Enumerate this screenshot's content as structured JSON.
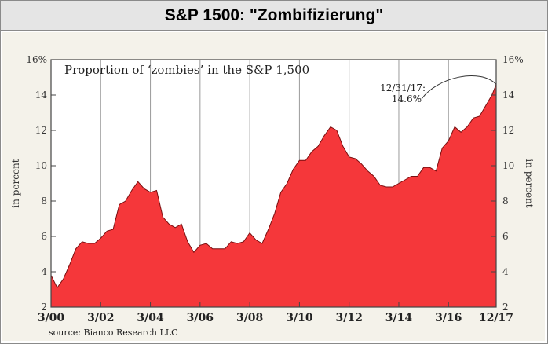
{
  "header": {
    "title": "S&P 1500: \"Zombifizierung\""
  },
  "chart_data": {
    "type": "area",
    "title": "Proportion of ‘zombies’ in the S&P 1,500",
    "ylabel_left": "in percent",
    "ylabel_right": "in percent",
    "ylim": [
      2,
      16
    ],
    "yticks": [
      2,
      4,
      6,
      8,
      10,
      12,
      14,
      16
    ],
    "ytick_labels": [
      "2",
      "4",
      "6",
      "8",
      "10",
      "12",
      "14",
      "16%"
    ],
    "xlim": [
      2000.0,
      2017.92
    ],
    "xticks": [
      2000,
      2002,
      2004,
      2006,
      2008,
      2010,
      2012,
      2014,
      2016,
      2017.92
    ],
    "xtick_labels": [
      "3/00",
      "3/02",
      "3/04",
      "3/06",
      "3/08",
      "3/10",
      "3/12",
      "3/14",
      "3/16",
      "12/17"
    ],
    "grid": "vertical",
    "fill_color": "#f5373a",
    "annotation": {
      "line1": "12/31/17:",
      "line2": "14.6%",
      "x": 2017.92,
      "y": 14.6
    },
    "source": "source: Bianco Research LLC",
    "series": [
      {
        "name": "Proportion of zombies",
        "x": [
          2000.0,
          2000.25,
          2000.5,
          2000.75,
          2001.0,
          2001.25,
          2001.5,
          2001.75,
          2002.0,
          2002.25,
          2002.5,
          2002.75,
          2003.0,
          2003.25,
          2003.5,
          2003.75,
          2004.0,
          2004.25,
          2004.5,
          2004.75,
          2005.0,
          2005.25,
          2005.5,
          2005.75,
          2006.0,
          2006.25,
          2006.5,
          2006.75,
          2007.0,
          2007.25,
          2007.5,
          2007.75,
          2008.0,
          2008.25,
          2008.5,
          2008.75,
          2009.0,
          2009.25,
          2009.5,
          2009.75,
          2010.0,
          2010.25,
          2010.5,
          2010.75,
          2011.0,
          2011.25,
          2011.5,
          2011.75,
          2012.0,
          2012.25,
          2012.5,
          2012.75,
          2013.0,
          2013.25,
          2013.5,
          2013.75,
          2014.0,
          2014.25,
          2014.5,
          2014.75,
          2015.0,
          2015.25,
          2015.5,
          2015.75,
          2016.0,
          2016.25,
          2016.5,
          2016.75,
          2017.0,
          2017.25,
          2017.5,
          2017.75,
          2017.92
        ],
        "values": [
          3.8,
          3.1,
          3.6,
          4.4,
          5.3,
          5.7,
          5.6,
          5.6,
          5.9,
          6.3,
          6.4,
          7.8,
          8.0,
          8.6,
          9.1,
          8.7,
          8.5,
          8.6,
          7.1,
          6.7,
          6.5,
          6.7,
          5.7,
          5.1,
          5.5,
          5.6,
          5.3,
          5.3,
          5.3,
          5.7,
          5.6,
          5.7,
          6.2,
          5.8,
          5.6,
          6.4,
          7.3,
          8.5,
          9.0,
          9.8,
          10.3,
          10.3,
          10.8,
          11.1,
          11.7,
          12.2,
          12.0,
          11.1,
          10.5,
          10.4,
          10.1,
          9.7,
          9.4,
          8.9,
          8.8,
          8.8,
          9.0,
          9.2,
          9.4,
          9.4,
          9.9,
          9.9,
          9.7,
          11.0,
          11.4,
          12.2,
          11.9,
          12.2,
          12.7,
          12.8,
          13.4,
          14.0,
          14.6
        ]
      }
    ]
  }
}
